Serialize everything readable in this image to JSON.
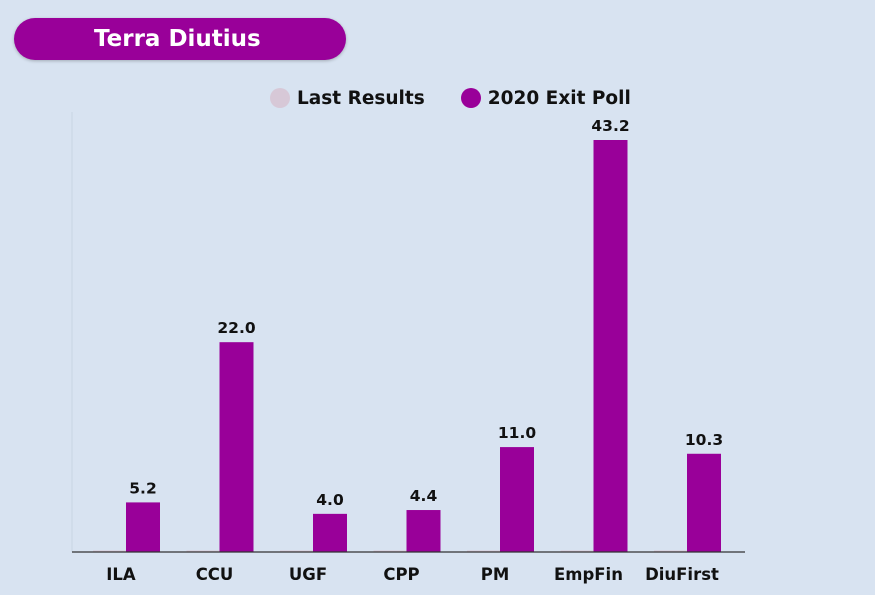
{
  "title": "Terra Diutius",
  "colors": {
    "background": "#d8e3f1",
    "accent": "#990099",
    "last_results": "#d7c8d7",
    "exit_poll": "#990099"
  },
  "legend": {
    "last_results": "Last Results",
    "exit_poll": "2020 Exit Poll"
  },
  "chart_data": {
    "type": "bar",
    "title": "Terra Diutius",
    "categories": [
      "ILA",
      "CCU",
      "UGF",
      "CPP",
      "PM",
      "EmpFin",
      "DiuFirst"
    ],
    "series": [
      {
        "name": "Last Results",
        "values": [
          0,
          0,
          0,
          0,
          0,
          0,
          0
        ]
      },
      {
        "name": "2020 Exit Poll",
        "values": [
          5.2,
          22.0,
          4.0,
          4.4,
          11.0,
          43.2,
          10.3
        ]
      }
    ],
    "data_labels": [
      "5.2",
      "22.0",
      "4.0",
      "4.4",
      "11.0",
      "43.2",
      "10.3"
    ],
    "xlabel": "",
    "ylabel": "",
    "ylim": [
      0,
      46
    ],
    "grid": false,
    "legend_position": "top"
  }
}
